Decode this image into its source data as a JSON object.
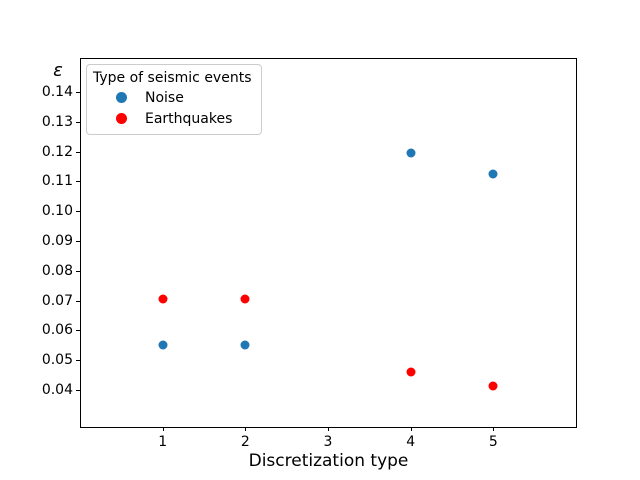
{
  "chart_data": {
    "type": "scatter",
    "title": "",
    "xlabel": "Discretization type",
    "ylabel": "ε",
    "xlim": [
      0,
      6
    ],
    "ylim": [
      0.0276,
      0.1514
    ],
    "grid": false,
    "frame": "full-box",
    "xticks": [
      {
        "value": 1,
        "label": "1"
      },
      {
        "value": 2,
        "label": "2"
      },
      {
        "value": 3,
        "label": "3"
      },
      {
        "value": 4,
        "label": "4"
      },
      {
        "value": 5,
        "label": "5"
      }
    ],
    "yticks": [
      {
        "value": 0.04,
        "label": "0.04"
      },
      {
        "value": 0.05,
        "label": "0.05"
      },
      {
        "value": 0.06,
        "label": "0.06"
      },
      {
        "value": 0.07,
        "label": "0.07"
      },
      {
        "value": 0.08,
        "label": "0.08"
      },
      {
        "value": 0.09,
        "label": "0.09"
      },
      {
        "value": 0.1,
        "label": "0.10"
      },
      {
        "value": 0.11,
        "label": "0.11"
      },
      {
        "value": 0.12,
        "label": "0.12"
      },
      {
        "value": 0.13,
        "label": "0.13"
      },
      {
        "value": 0.14,
        "label": "0.14"
      }
    ],
    "legend": {
      "title": "Type of seismic events",
      "position": "upper left"
    },
    "series": [
      {
        "name": "Noise",
        "color": "#1f77b4",
        "points": [
          [
            1,
            0.055
          ],
          [
            2,
            0.055
          ],
          [
            4,
            0.1195
          ],
          [
            5,
            0.1125
          ]
        ]
      },
      {
        "name": "Earthquakes",
        "color": "#ff0000",
        "points": [
          [
            1,
            0.0705
          ],
          [
            2,
            0.0705
          ],
          [
            4,
            0.046
          ],
          [
            5,
            0.0415
          ]
        ]
      }
    ]
  }
}
